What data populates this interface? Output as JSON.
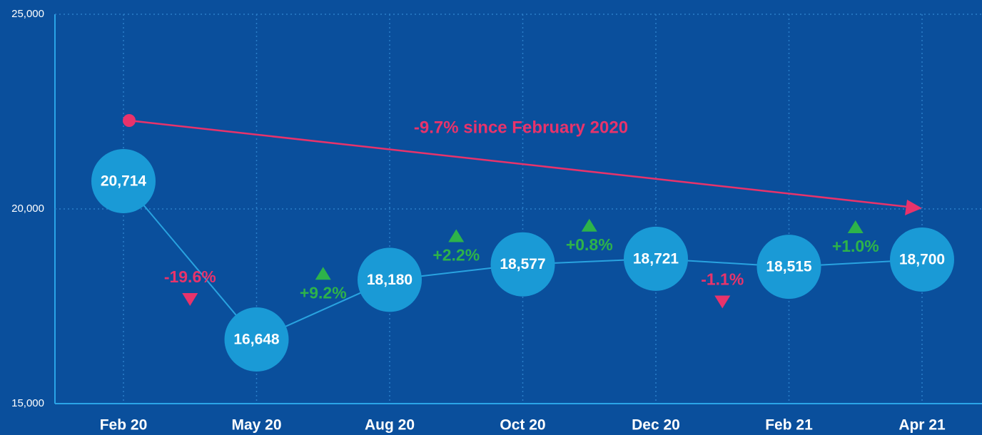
{
  "chart_data": {
    "type": "line",
    "categories": [
      "Feb 20",
      "May 20",
      "Aug 20",
      "Oct 20",
      "Dec 20",
      "Feb 21",
      "Apr 21"
    ],
    "values": [
      20714,
      16648,
      18180,
      18577,
      18721,
      18515,
      18700
    ],
    "value_labels": [
      "20,714",
      "16,648",
      "18,180",
      "18,577",
      "18,721",
      "18,515",
      "18,700"
    ],
    "color": "#29a3e0",
    "marker_color": "#1a9ad6",
    "ylim": [
      15000,
      25000
    ],
    "yticks": [
      {
        "value": 15000,
        "label": "15,000"
      },
      {
        "value": 20000,
        "label": "20,000"
      },
      {
        "value": 25000,
        "label": "25,000"
      }
    ],
    "grid": true,
    "changes": [
      {
        "text": "-19.6%",
        "direction": "down"
      },
      {
        "text": "+9.2%",
        "direction": "up"
      },
      {
        "text": "+2.2%",
        "direction": "up"
      },
      {
        "text": "+0.8%",
        "direction": "up"
      },
      {
        "text": "-1.1%",
        "direction": "down"
      },
      {
        "text": "+1.0%",
        "direction": "up"
      }
    ],
    "up_color": "#2db34a",
    "down_color": "#e8336b",
    "headline": "-9.7% since February 2020"
  }
}
